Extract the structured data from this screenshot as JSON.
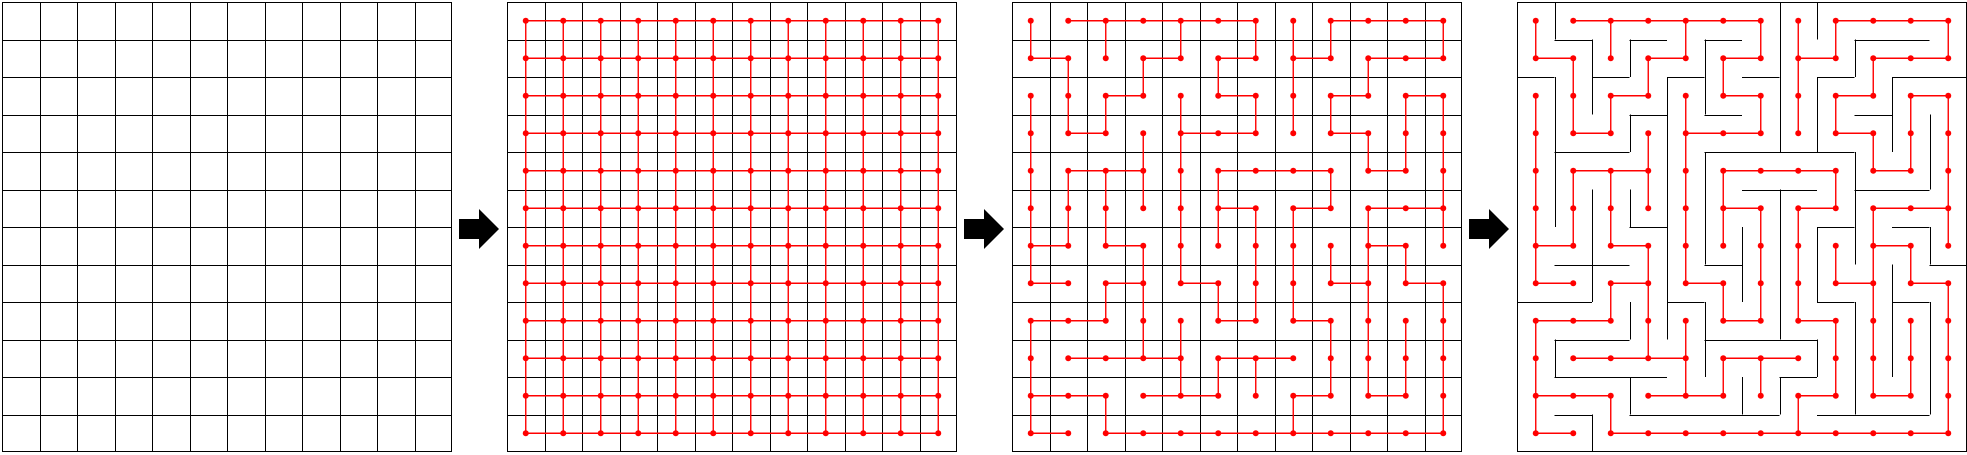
{
  "figure": {
    "rows": 12,
    "cols": 12,
    "colors": {
      "grid_line": "#000000",
      "graph_edge": "#ff0000",
      "graph_node": "#ff0000",
      "arrow": "#000000"
    },
    "panels": [
      {
        "name": "empty-grid",
        "stage": "grid"
      },
      {
        "name": "full-grid-graph",
        "stage": "full-graph"
      },
      {
        "name": "spanning-tree",
        "stage": "tree"
      },
      {
        "name": "maze",
        "stage": "maze"
      }
    ],
    "arrows": [
      {
        "name": "arrow-grid-to-graph",
        "icon": "right-arrow-icon"
      },
      {
        "name": "arrow-graph-to-tree",
        "icon": "right-arrow-icon"
      },
      {
        "name": "arrow-tree-to-maze",
        "icon": "right-arrow-icon"
      }
    ]
  }
}
